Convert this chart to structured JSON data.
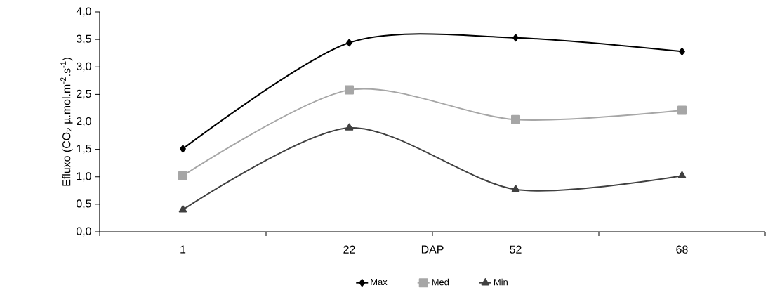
{
  "chart_data": {
    "type": "line",
    "xlabel": "DAP",
    "ylabel": "Efluxo (CO$_{2}$ µ.mol.m$^{-2}$.s$^{-1}$)",
    "categories": [
      "1",
      "22",
      "52",
      "68"
    ],
    "series": [
      {
        "name": "Max",
        "color": "#000000",
        "marker": "diamond",
        "values": [
          1.51,
          3.44,
          3.53,
          3.28
        ]
      },
      {
        "name": "Med",
        "color": "#a6a6a6",
        "marker": "square",
        "values": [
          1.02,
          2.58,
          2.04,
          2.21
        ]
      },
      {
        "name": "Min",
        "color": "#404040",
        "marker": "triangle",
        "values": [
          0.4,
          1.89,
          0.77,
          1.02
        ]
      }
    ],
    "ylim": [
      0,
      4
    ],
    "yticks": [
      {
        "value": 0,
        "label": "0,0"
      },
      {
        "value": 0.5,
        "label": "0,5"
      },
      {
        "value": 1,
        "label": "1,0"
      },
      {
        "value": 1.5,
        "label": "1,5"
      },
      {
        "value": 2,
        "label": "2,0"
      },
      {
        "value": 2.5,
        "label": "2,5"
      },
      {
        "value": 3,
        "label": "3,0"
      },
      {
        "value": 3.5,
        "label": "3,5"
      },
      {
        "value": 4,
        "label": "4,0"
      }
    ],
    "grid": false,
    "legend": "bottom",
    "line_style": "solid"
  }
}
